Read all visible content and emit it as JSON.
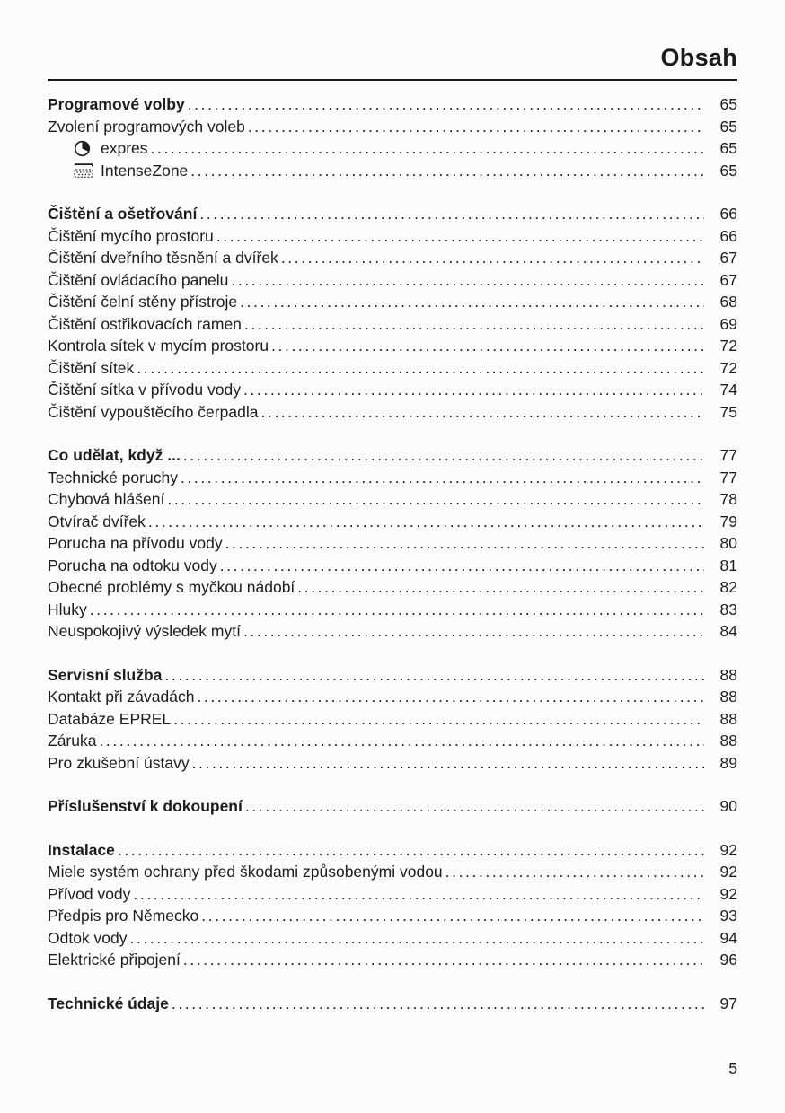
{
  "page": {
    "title": "Obsah",
    "footer_page_number": "5"
  },
  "colors": {
    "ink": "#1c1c1c",
    "background": "#fcfcfc"
  },
  "toc": {
    "sections": [
      {
        "entries": [
          {
            "label": "Programové volby",
            "page": "65",
            "bold": true
          },
          {
            "label": "Zvolení programových voleb",
            "page": "65"
          },
          {
            "label": "expres",
            "page": "65",
            "indent": true,
            "icon": "timer-icon"
          },
          {
            "label": "IntenseZone",
            "page": "65",
            "indent": true,
            "icon": "intensezone-icon"
          }
        ]
      },
      {
        "entries": [
          {
            "label": "Čištění a ošetřování",
            "page": "66",
            "bold": true
          },
          {
            "label": "Čištění mycího prostoru",
            "page": "66"
          },
          {
            "label": "Čištění dveřního těsnění a dvířek",
            "page": "67"
          },
          {
            "label": "Čištění ovládacího panelu",
            "page": "67"
          },
          {
            "label": "Čištění čelní stěny přístroje",
            "page": "68"
          },
          {
            "label": "Čištění ostřikovacích ramen",
            "page": "69"
          },
          {
            "label": "Kontrola sítek v mycím prostoru",
            "page": "72"
          },
          {
            "label": "Čištění sítek",
            "page": "72"
          },
          {
            "label": "Čištění sítka v přívodu vody",
            "page": "74"
          },
          {
            "label": "Čištění vypouštěcího čerpadla",
            "page": "75"
          }
        ]
      },
      {
        "entries": [
          {
            "label": "Co udělat, když ...",
            "page": "77",
            "bold": true
          },
          {
            "label": "Technické poruchy",
            "page": "77"
          },
          {
            "label": "Chybová hlášení",
            "page": "78"
          },
          {
            "label": "Otvírač dvířek",
            "page": "79"
          },
          {
            "label": "Porucha na přívodu vody",
            "page": "80"
          },
          {
            "label": "Porucha na odtoku vody",
            "page": "81"
          },
          {
            "label": "Obecné problémy s myčkou nádobí",
            "page": "82"
          },
          {
            "label": "Hluky",
            "page": "83"
          },
          {
            "label": "Neuspokojivý výsledek mytí",
            "page": "84"
          }
        ]
      },
      {
        "entries": [
          {
            "label": "Servisní služba",
            "page": "88",
            "bold": true
          },
          {
            "label": "Kontakt při závadách",
            "page": "88"
          },
          {
            "label": "Databáze EPREL",
            "page": "88"
          },
          {
            "label": "Záruka",
            "page": "88"
          },
          {
            "label": "Pro zkušební ústavy",
            "page": "89"
          }
        ]
      },
      {
        "entries": [
          {
            "label": "Příslušenství k dokoupení",
            "page": "90",
            "bold": true
          }
        ]
      },
      {
        "entries": [
          {
            "label": "Instalace",
            "page": "92",
            "bold": true
          },
          {
            "label": "Miele systém ochrany před škodami způsobenými vodou",
            "page": "92"
          },
          {
            "label": "Přívod vody",
            "page": "92"
          },
          {
            "label": "Předpis pro Německo",
            "page": "93"
          },
          {
            "label": "Odtok vody",
            "page": "94"
          },
          {
            "label": "Elektrické připojení",
            "page": "96"
          }
        ]
      },
      {
        "entries": [
          {
            "label": "Technické údaje",
            "page": "97",
            "bold": true
          }
        ]
      }
    ]
  }
}
